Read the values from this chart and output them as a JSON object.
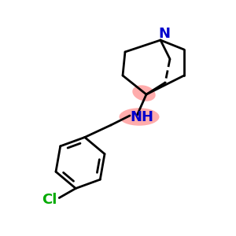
{
  "bg_color": "#ffffff",
  "bond_color": "#000000",
  "N_color": "#0000cc",
  "Cl_color": "#00aa00",
  "highlight_color": "#ff8080",
  "highlight_alpha": 0.65,
  "line_width": 2.0,
  "figsize": [
    3.0,
    3.0
  ],
  "dpi": 100,
  "N_label": "N",
  "NH_label": "NH",
  "Cl_label": "Cl",
  "N_fontsize": 13,
  "NH_fontsize": 13,
  "Cl_fontsize": 13
}
